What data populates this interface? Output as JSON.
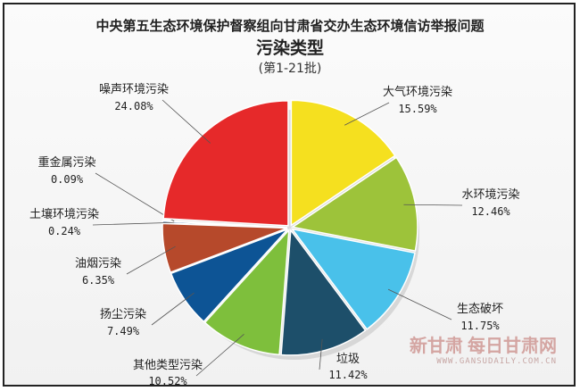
{
  "chart_data": {
    "type": "pie",
    "title": "中央第五生态环境保护督察组向甘肃省交办生态环境信访举报问题",
    "subtitle": "污染类型",
    "note": "(第1-21批)",
    "slices": [
      {
        "label": "大气环境污染",
        "value_text": "15.59%",
        "value": 15.59,
        "color": "#f5e01f"
      },
      {
        "label": "水环境污染",
        "value_text": "12.46%",
        "value": 12.46,
        "color": "#9dc33a"
      },
      {
        "label": "生态破坏",
        "value_text": "11.75%",
        "value": 11.75,
        "color": "#49c1ea"
      },
      {
        "label": "垃圾",
        "value_text": "11.42%",
        "value": 11.42,
        "color": "#1d4f6a"
      },
      {
        "label": "其他类型污染",
        "value_text": "10.52%",
        "value": 10.52,
        "color": "#7ebf3c"
      },
      {
        "label": "扬尘污染",
        "value_text": "7.49%",
        "value": 7.49,
        "color": "#0d5495"
      },
      {
        "label": "油烟污染",
        "value_text": "6.35%",
        "value": 6.35,
        "color": "#b6492b"
      },
      {
        "label": "土壤环境污染",
        "value_text": "0.24%",
        "value": 0.24,
        "color": "#3c6f9f"
      },
      {
        "label": "重金属污染",
        "value_text": "0.09%",
        "value": 0.09,
        "color": "#cfcfcf"
      },
      {
        "label": "噪声环境污染",
        "value_text": "24.08%",
        "value": 24.08,
        "color": "#e6292a"
      }
    ]
  },
  "watermark": {
    "logo": "新甘肃",
    "brand": "每日甘肃网",
    "url": "WWW.GANSUDAILY.COM.CN"
  }
}
